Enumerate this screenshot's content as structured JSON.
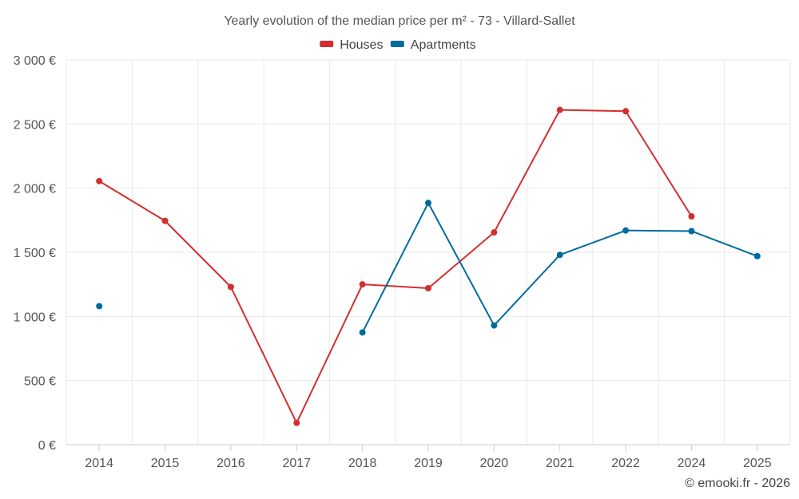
{
  "chart_data": {
    "type": "line",
    "title": "Yearly evolution of the median price per m² - 73 - Villard-Sallet",
    "xlabel": "",
    "ylabel": "",
    "categories": [
      "2014",
      "2015",
      "2016",
      "2017",
      "2018",
      "2019",
      "2020",
      "2021",
      "2022",
      "2024",
      "2025"
    ],
    "ylim": [
      0,
      3000
    ],
    "yticks": [
      0,
      500,
      1000,
      1500,
      2000,
      2500,
      3000
    ],
    "ytick_labels": [
      "0 €",
      "500 €",
      "1 000 €",
      "1 500 €",
      "2 000 €",
      "2 500 €",
      "3 000 €"
    ],
    "grid": true,
    "legend_position": "top-center",
    "series": [
      {
        "name": "Houses",
        "color": "#d32f2f",
        "values": [
          2055,
          1745,
          1230,
          170,
          1250,
          1220,
          1655,
          2610,
          2600,
          1780,
          null
        ]
      },
      {
        "name": "Apartments",
        "color": "#006b9f",
        "values": [
          1080,
          null,
          null,
          null,
          875,
          1885,
          930,
          1480,
          1670,
          1665,
          1470
        ]
      }
    ],
    "credit": "© emooki.fr - 2026"
  }
}
